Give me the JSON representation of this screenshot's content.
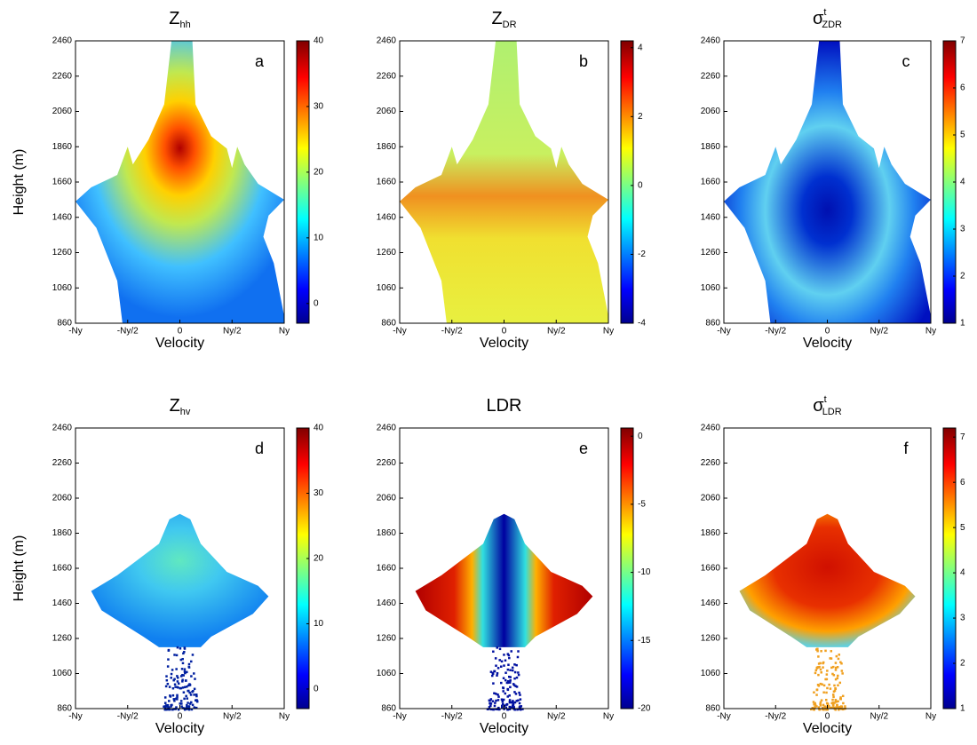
{
  "chart_data": [
    {
      "type": "heatmap",
      "panel": "a",
      "title": "Z",
      "title_sub": "hh",
      "xlabel": "Velocity",
      "ylabel": "Height (m)",
      "xlim": [
        -1,
        1
      ],
      "xticks": [
        {
          "value": -1,
          "label": "-Ny"
        },
        {
          "value": -0.5,
          "label": "-Ny/2"
        },
        0,
        {
          "value": 0.5,
          "label": "Ny/2"
        },
        {
          "value": 1,
          "label": "Ny"
        }
      ],
      "ylim": [
        860,
        2460
      ],
      "yticks": [
        860,
        1060,
        1260,
        1460,
        1660,
        1860,
        2060,
        2260,
        2460
      ],
      "colorbar": {
        "lim": [
          -3,
          40
        ],
        "ticks": [
          0,
          10,
          20,
          30,
          40
        ]
      }
    },
    {
      "type": "heatmap",
      "panel": "b",
      "title": "Z",
      "title_sub": "DR",
      "xlabel": "Velocity",
      "xlim": [
        -1,
        1
      ],
      "xticks": [
        {
          "value": -1,
          "label": "-Ny"
        },
        {
          "value": -0.5,
          "label": "-Ny/2"
        },
        0,
        {
          "value": 0.5,
          "label": "Ny/2"
        },
        {
          "value": 1,
          "label": "Ny"
        }
      ],
      "ylim": [
        860,
        2460
      ],
      "yticks": [
        860,
        1060,
        1260,
        1460,
        1660,
        1860,
        2060,
        2260,
        2460
      ],
      "colorbar": {
        "lim": [
          -4,
          4.2
        ],
        "ticks": [
          -4,
          -2,
          0,
          2,
          4
        ]
      }
    },
    {
      "type": "heatmap",
      "panel": "c",
      "title": "σ",
      "title_sup": "t",
      "title_sub": "ZDR",
      "xlabel": "Velocity",
      "xlim": [
        -1,
        1
      ],
      "xticks": [
        {
          "value": -1,
          "label": "-Ny"
        },
        {
          "value": -0.5,
          "label": "-Ny/2"
        },
        0,
        {
          "value": 0.5,
          "label": "Ny/2"
        },
        {
          "value": 1,
          "label": "Ny"
        }
      ],
      "ylim": [
        860,
        2460
      ],
      "yticks": [
        860,
        1060,
        1260,
        1460,
        1660,
        1860,
        2060,
        2260,
        2460
      ],
      "colorbar": {
        "lim": [
          1,
          7
        ],
        "ticks": [
          1,
          2,
          3,
          4,
          5,
          6,
          7
        ]
      }
    },
    {
      "type": "heatmap",
      "panel": "d",
      "title": "Z",
      "title_sub": "hv",
      "xlabel": "Velocity",
      "ylabel": "Height (m)",
      "xlim": [
        -1,
        1
      ],
      "xticks": [
        {
          "value": -1,
          "label": "-Ny"
        },
        {
          "value": -0.5,
          "label": "-Ny/2"
        },
        0,
        {
          "value": 0.5,
          "label": "Ny/2"
        },
        {
          "value": 1,
          "label": "Ny"
        }
      ],
      "ylim": [
        860,
        2460
      ],
      "yticks": [
        860,
        1060,
        1260,
        1460,
        1660,
        1860,
        2060,
        2260,
        2460
      ],
      "colorbar": {
        "lim": [
          -3,
          40
        ],
        "ticks": [
          0,
          10,
          20,
          30,
          40
        ]
      }
    },
    {
      "type": "heatmap",
      "panel": "e",
      "title": "LDR",
      "xlabel": "Velocity",
      "xlim": [
        -1,
        1
      ],
      "xticks": [
        {
          "value": -1,
          "label": "-Ny"
        },
        {
          "value": -0.5,
          "label": "-Ny/2"
        },
        0,
        {
          "value": 0.5,
          "label": "Ny/2"
        },
        {
          "value": 1,
          "label": "Ny"
        }
      ],
      "ylim": [
        860,
        2460
      ],
      "yticks": [
        860,
        1060,
        1260,
        1460,
        1660,
        1860,
        2060,
        2260,
        2460
      ],
      "colorbar": {
        "lim": [
          -20,
          0.6
        ],
        "ticks": [
          -20,
          -15,
          -10,
          -5,
          0
        ]
      }
    },
    {
      "type": "heatmap",
      "panel": "f",
      "title": "σ",
      "title_sup": "t",
      "title_sub": "LDR",
      "xlabel": "Velocity",
      "xlim": [
        -1,
        1
      ],
      "xticks": [
        {
          "value": -1,
          "label": "-Ny"
        },
        {
          "value": -0.5,
          "label": "-Ny/2"
        },
        0,
        {
          "value": 0.5,
          "label": "Ny/2"
        },
        {
          "value": 1,
          "label": "Ny"
        }
      ],
      "ylim": [
        860,
        2460
      ],
      "yticks": [
        860,
        1060,
        1260,
        1460,
        1660,
        1860,
        2060,
        2260,
        2460
      ],
      "colorbar": {
        "lim": [
          1,
          7.2
        ],
        "ticks": [
          1,
          2,
          3,
          4,
          5,
          6,
          7
        ]
      }
    }
  ]
}
